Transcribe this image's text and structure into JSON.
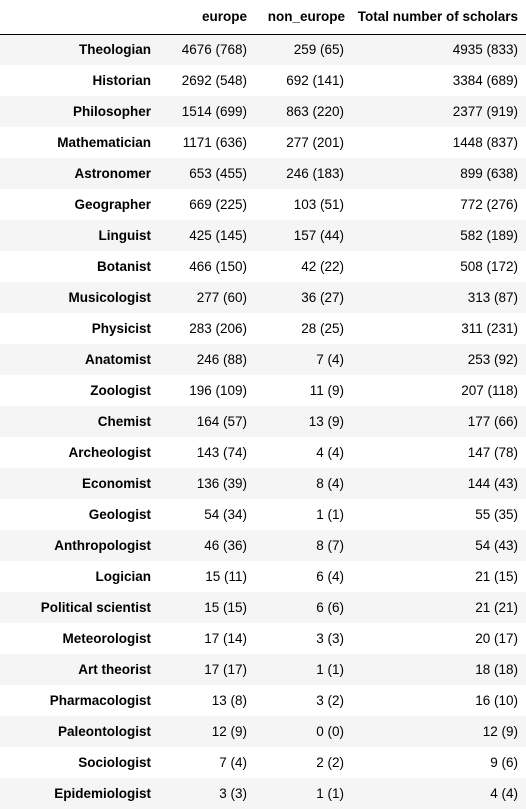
{
  "table": {
    "columns": [
      "europe",
      "non_europe",
      "Total number of scholars"
    ],
    "rows": [
      {
        "name": "Theologian",
        "europe": "4676 (768)",
        "non_europe": "259 (65)",
        "total": "4935 (833)"
      },
      {
        "name": "Historian",
        "europe": "2692 (548)",
        "non_europe": "692 (141)",
        "total": "3384 (689)"
      },
      {
        "name": "Philosopher",
        "europe": "1514 (699)",
        "non_europe": "863 (220)",
        "total": "2377 (919)"
      },
      {
        "name": "Mathematician",
        "europe": "1171 (636)",
        "non_europe": "277 (201)",
        "total": "1448 (837)"
      },
      {
        "name": "Astronomer",
        "europe": "653 (455)",
        "non_europe": "246 (183)",
        "total": "899 (638)"
      },
      {
        "name": "Geographer",
        "europe": "669 (225)",
        "non_europe": "103 (51)",
        "total": "772 (276)"
      },
      {
        "name": "Linguist",
        "europe": "425 (145)",
        "non_europe": "157 (44)",
        "total": "582 (189)"
      },
      {
        "name": "Botanist",
        "europe": "466 (150)",
        "non_europe": "42 (22)",
        "total": "508 (172)"
      },
      {
        "name": "Musicologist",
        "europe": "277 (60)",
        "non_europe": "36 (27)",
        "total": "313 (87)"
      },
      {
        "name": "Physicist",
        "europe": "283 (206)",
        "non_europe": "28 (25)",
        "total": "311 (231)"
      },
      {
        "name": "Anatomist",
        "europe": "246 (88)",
        "non_europe": "7 (4)",
        "total": "253 (92)"
      },
      {
        "name": "Zoologist",
        "europe": "196 (109)",
        "non_europe": "11 (9)",
        "total": "207 (118)"
      },
      {
        "name": "Chemist",
        "europe": "164 (57)",
        "non_europe": "13 (9)",
        "total": "177 (66)"
      },
      {
        "name": "Archeologist",
        "europe": "143 (74)",
        "non_europe": "4 (4)",
        "total": "147 (78)"
      },
      {
        "name": "Economist",
        "europe": "136 (39)",
        "non_europe": "8 (4)",
        "total": "144 (43)"
      },
      {
        "name": "Geologist",
        "europe": "54 (34)",
        "non_europe": "1 (1)",
        "total": "55 (35)"
      },
      {
        "name": "Anthropologist",
        "europe": "46 (36)",
        "non_europe": "8 (7)",
        "total": "54 (43)"
      },
      {
        "name": "Logician",
        "europe": "15 (11)",
        "non_europe": "6 (4)",
        "total": "21 (15)"
      },
      {
        "name": "Political scientist",
        "europe": "15 (15)",
        "non_europe": "6 (6)",
        "total": "21 (21)"
      },
      {
        "name": "Meteorologist",
        "europe": "17 (14)",
        "non_europe": "3 (3)",
        "total": "20 (17)"
      },
      {
        "name": "Art theorist",
        "europe": "17 (17)",
        "non_europe": "1 (1)",
        "total": "18 (18)"
      },
      {
        "name": "Pharmacologist",
        "europe": "13 (8)",
        "non_europe": "3 (2)",
        "total": "16 (10)"
      },
      {
        "name": "Paleontologist",
        "europe": "12 (9)",
        "non_europe": "0 (0)",
        "total": "12 (9)"
      },
      {
        "name": "Sociologist",
        "europe": "7 (4)",
        "non_europe": "2 (2)",
        "total": "9 (6)"
      },
      {
        "name": "Epidemiologist",
        "europe": "3 (3)",
        "non_europe": "1 (1)",
        "total": "4 (4)"
      }
    ]
  }
}
